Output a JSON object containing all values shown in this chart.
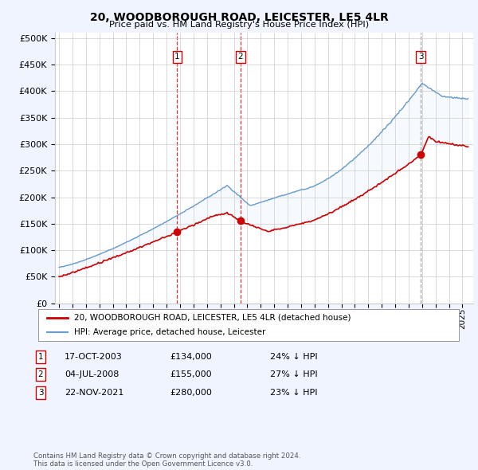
{
  "title": "20, WOODBOROUGH ROAD, LEICESTER, LE5 4LR",
  "subtitle": "Price paid vs. HM Land Registry's House Price Index (HPI)",
  "ytick_values": [
    0,
    50000,
    100000,
    150000,
    200000,
    250000,
    300000,
    350000,
    400000,
    450000,
    500000
  ],
  "ylim": [
    0,
    510000
  ],
  "xlim_start": 1994.7,
  "xlim_end": 2025.8,
  "sale_dates_float": [
    2003.79,
    2008.5,
    2021.9
  ],
  "sale_prices": [
    134000,
    155000,
    280000
  ],
  "sale_labels": [
    "1",
    "2",
    "3"
  ],
  "legend_property_label": "20, WOODBOROUGH ROAD, LEICESTER, LE5 4LR (detached house)",
  "legend_hpi_label": "HPI: Average price, detached house, Leicester",
  "table_rows": [
    {
      "label": "1",
      "date": "17-OCT-2003",
      "price": "£134,000",
      "hpi": "24% ↓ HPI"
    },
    {
      "label": "2",
      "date": "04-JUL-2008",
      "price": "£155,000",
      "hpi": "27% ↓ HPI"
    },
    {
      "label": "3",
      "date": "22-NOV-2021",
      "price": "£280,000",
      "hpi": "23% ↓ HPI"
    }
  ],
  "footer": "Contains HM Land Registry data © Crown copyright and database right 2024.\nThis data is licensed under the Open Government Licence v3.0.",
  "property_line_color": "#cc0000",
  "hpi_line_color": "#6699cc",
  "vline_colors": [
    "#cc0000",
    "#cc0000",
    "#888888"
  ],
  "fill_color": "#ddeeff",
  "background_color": "#f0f4ff",
  "chart_bg_color": "#ffffff",
  "grid_color": "#cccccc",
  "label_box_border": "#cc0000"
}
